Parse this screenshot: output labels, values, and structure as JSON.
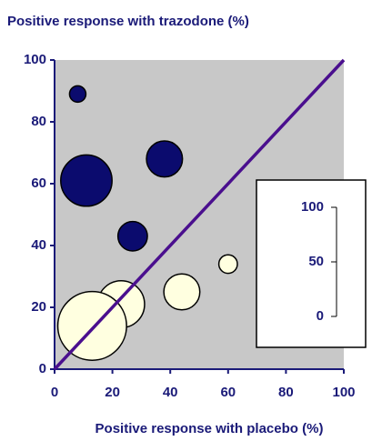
{
  "chart_data": {
    "type": "bubble",
    "title": "Positive response with trazodone (%)",
    "x_label": "Positive response with placebo (%)",
    "xlim": [
      0,
      100
    ],
    "ylim": [
      0,
      100
    ],
    "xticks": [
      0,
      20,
      40,
      60,
      80,
      100
    ],
    "yticks": [
      0,
      20,
      40,
      60,
      80,
      100
    ],
    "size_ticks": [
      0,
      50,
      100
    ],
    "series": [
      {
        "color": "#0b0b6e",
        "x": [
          8,
          11,
          38,
          27
        ],
        "values": [
          89,
          61,
          68,
          43
        ],
        "sizes": [
          15,
          47,
          33,
          27
        ]
      },
      {
        "color": "#ffffe0",
        "x": [
          60,
          44,
          23,
          13
        ],
        "values": [
          34,
          25,
          21,
          14
        ],
        "sizes": [
          17,
          33,
          43,
          63
        ]
      }
    ]
  }
}
